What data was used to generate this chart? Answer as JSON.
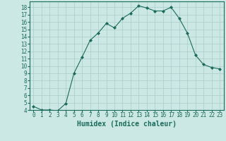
{
  "x": [
    0,
    1,
    2,
    3,
    4,
    5,
    6,
    7,
    8,
    9,
    10,
    11,
    12,
    13,
    14,
    15,
    16,
    17,
    18,
    19,
    20,
    21,
    22,
    23
  ],
  "y": [
    4.5,
    4.0,
    4.0,
    3.9,
    4.9,
    9.0,
    11.2,
    13.5,
    14.5,
    15.8,
    15.2,
    16.5,
    17.2,
    18.2,
    17.9,
    17.5,
    17.5,
    18.0,
    16.5,
    14.5,
    11.5,
    10.2,
    9.8,
    9.6
  ],
  "line_color": "#1a6b5a",
  "marker": "D",
  "marker_size": 2.0,
  "bg_color": "#cce8e4",
  "grid_color": "#aaccca",
  "xlabel": "Humidex (Indice chaleur)",
  "xlim": [
    -0.5,
    23.5
  ],
  "ylim": [
    4,
    18.8
  ],
  "yticks": [
    4,
    5,
    6,
    7,
    8,
    9,
    10,
    11,
    12,
    13,
    14,
    15,
    16,
    17,
    18
  ],
  "xticks": [
    0,
    1,
    2,
    3,
    4,
    5,
    6,
    7,
    8,
    9,
    10,
    11,
    12,
    13,
    14,
    15,
    16,
    17,
    18,
    19,
    20,
    21,
    22,
    23
  ],
  "tick_fontsize": 5.5,
  "xlabel_fontsize": 7.0
}
